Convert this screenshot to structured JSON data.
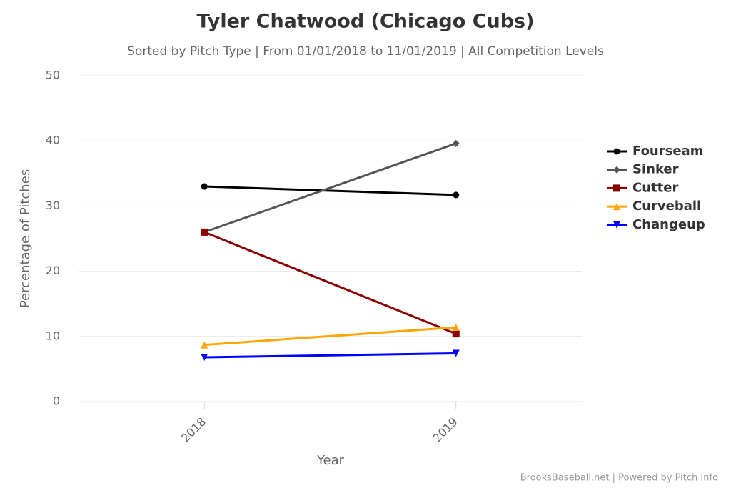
{
  "chart_data": {
    "type": "line",
    "title": "Tyler Chatwood (Chicago Cubs)",
    "subtitle": "Sorted by Pitch Type | From 01/01/2018 to 11/01/2019 | All Competition Levels",
    "x_label": "Year",
    "y_label": "Percentage of Pitches",
    "credit": "BrooksBaseball.net | Powered by Pitch Info",
    "categories": [
      "2018",
      "2019"
    ],
    "series": [
      {
        "name": "Fourseam",
        "color": "#000000",
        "marker": "circle",
        "values": [
          33.0,
          31.7
        ]
      },
      {
        "name": "Sinker",
        "color": "#555555",
        "marker": "diamond",
        "values": [
          26.0,
          39.6
        ]
      },
      {
        "name": "Cutter",
        "color": "#8b0000",
        "marker": "square",
        "values": [
          26.0,
          10.4
        ]
      },
      {
        "name": "Curveball",
        "color": "#ffa500",
        "marker": "triangle",
        "values": [
          8.7,
          11.4
        ]
      },
      {
        "name": "Changeup",
        "color": "#0000ff",
        "marker": "triangle-down",
        "values": [
          6.8,
          7.4
        ]
      }
    ],
    "ylim": [
      0,
      50
    ],
    "yticks": [
      0,
      10,
      20,
      30,
      40,
      50
    ],
    "grid": true,
    "legend": "right"
  }
}
